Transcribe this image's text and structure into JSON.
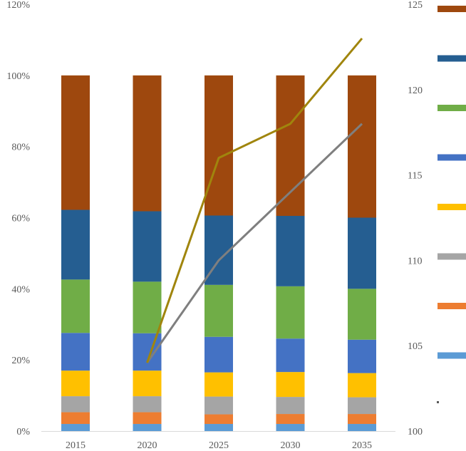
{
  "chart_data": {
    "type": "bar",
    "stacked": true,
    "percent": true,
    "categories": [
      "2015",
      "2020",
      "2025",
      "2030",
      "2035"
    ],
    "y_left": {
      "ticks": [
        "0%",
        "20%",
        "40%",
        "60%",
        "80%",
        "100%",
        "120%"
      ],
      "ylim": [
        0,
        120
      ]
    },
    "y_right": {
      "ticks": [
        "100",
        "105",
        "110",
        "115",
        "120",
        "125"
      ],
      "ylim": [
        100,
        125
      ]
    },
    "series": [
      {
        "color": "#5B9BD5",
        "values": [
          2,
          2,
          2,
          2,
          2
        ]
      },
      {
        "color": "#ED7D31",
        "values": [
          3.3,
          3.3,
          2.7,
          2.8,
          2.8
        ]
      },
      {
        "color": "#A5A5A5",
        "values": [
          4.5,
          4.5,
          5.0,
          4.8,
          4.7
        ]
      },
      {
        "color": "#FFC000",
        "values": [
          7.2,
          7.2,
          6.8,
          7.0,
          6.8
        ]
      },
      {
        "color": "#4472C4",
        "values": [
          10.6,
          10.5,
          10.0,
          9.4,
          9.4
        ]
      },
      {
        "color": "#70AD47",
        "values": [
          15.0,
          14.5,
          14.6,
          14.7,
          14.3
        ]
      },
      {
        "color": "#255E91",
        "values": [
          19.6,
          19.8,
          19.5,
          19.8,
          20.0
        ]
      },
      {
        "color": "#9E480E",
        "values": [
          37.8,
          38.2,
          39.4,
          39.5,
          40.0
        ]
      }
    ],
    "lines": [
      {
        "color": "#7F7F7F",
        "axis": "right",
        "start_index": 1,
        "values": [
          null,
          104,
          110,
          114,
          118
        ]
      },
      {
        "color": "#A0850D",
        "axis": "right",
        "start_index": 1,
        "values": [
          null,
          104,
          116,
          118,
          123
        ]
      }
    ],
    "legend": {
      "position": "right"
    },
    "grid": false
  }
}
